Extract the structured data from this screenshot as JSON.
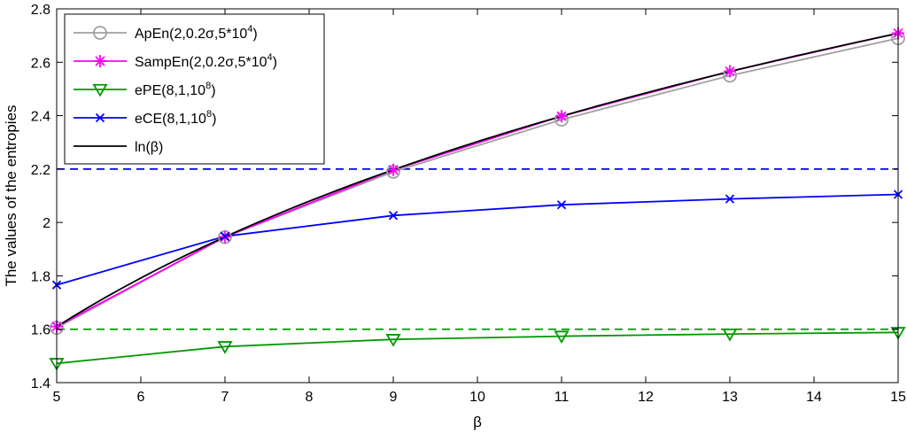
{
  "chart_data": {
    "type": "line",
    "xlabel": "β",
    "ylabel": "The values of the entropies",
    "xlim": [
      5,
      15
    ],
    "ylim": [
      1.4,
      2.8
    ],
    "x_ticks": [
      "5",
      "6",
      "7",
      "8",
      "9",
      "10",
      "11",
      "12",
      "13",
      "14",
      "15"
    ],
    "y_ticks": [
      "1.4",
      "1.6",
      "1.8",
      "2",
      "2.2",
      "2.4",
      "2.6",
      "2.8"
    ],
    "grid": false,
    "legend_position": "top-left",
    "x": [
      5,
      7,
      9,
      11,
      13,
      15
    ],
    "series": [
      {
        "name_base": "ApEn(2,0.2σ,5*10",
        "name_sup": "4",
        "name_tail": ")",
        "color": "#a0a0a0",
        "marker": "circle",
        "values": [
          1.605,
          1.945,
          2.19,
          2.385,
          2.55,
          2.69
        ]
      },
      {
        "name_base": "SampEn(2,0.2σ,5*10",
        "name_sup": "4",
        "name_tail": ")",
        "color": "#ff00ff",
        "marker": "asterisk",
        "values": [
          1.61,
          1.946,
          2.197,
          2.398,
          2.566,
          2.709
        ]
      },
      {
        "name_base": "ePE(8,1,10",
        "name_sup": "8",
        "name_tail": ")",
        "color": "#009900",
        "marker": "triangle-down",
        "values": [
          1.472,
          1.535,
          1.562,
          1.574,
          1.582,
          1.588
        ]
      },
      {
        "name_base": "eCE(8,1,10",
        "name_sup": "8",
        "name_tail": ")",
        "color": "#0000ff",
        "marker": "x",
        "values": [
          1.766,
          1.948,
          2.026,
          2.066,
          2.088,
          2.105
        ]
      },
      {
        "name_base": "ln(β)",
        "name_sup": "",
        "name_tail": "",
        "color": "#000000",
        "marker": "none",
        "function": "ln"
      }
    ],
    "reference_lines": [
      {
        "y": 2.2,
        "color": "#0000ff",
        "style": "dashed"
      },
      {
        "y": 1.6,
        "color": "#009900",
        "style": "dashed"
      }
    ]
  }
}
